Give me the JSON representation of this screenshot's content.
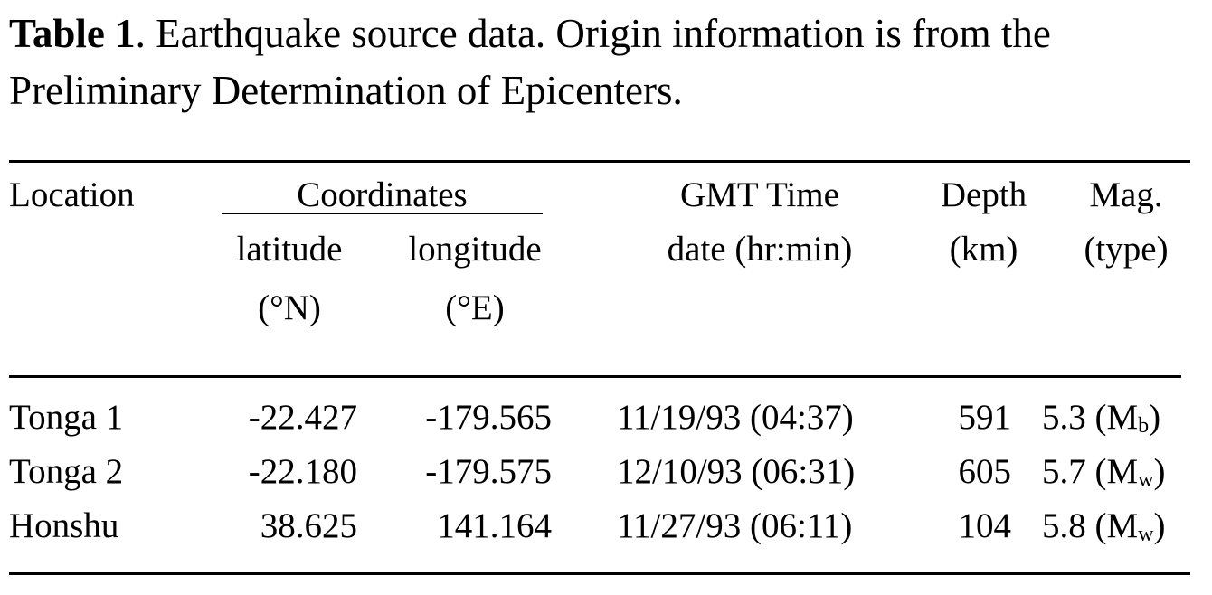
{
  "caption": {
    "label": "Table 1",
    "text": ". Earthquake source data.  Origin information is from the Preliminary Determination of Epicenters."
  },
  "table": {
    "headers": {
      "location": "Location",
      "coordinates": "Coordinates",
      "latitude": "latitude",
      "latitude_unit": "(°N)",
      "longitude": "longitude",
      "longitude_unit": "(°E)",
      "time": "GMT Time",
      "time_sub": "date (hr:min)",
      "depth": "Depth",
      "depth_unit": "(km)",
      "mag": "Mag.",
      "mag_sub": "(type)"
    },
    "rows": [
      {
        "location": "Tonga 1",
        "lat": "-22.427",
        "lon": "-179.565",
        "time": "11/19/93 (04:37)",
        "depth": "591",
        "mag": "5.3",
        "mag_type": "b"
      },
      {
        "location": "Tonga 2",
        "lat": "-22.180",
        "lon": "-179.575",
        "time": "12/10/93 (06:31)",
        "depth": "605",
        "mag": "5.7",
        "mag_type": "w"
      },
      {
        "location": "Honshu",
        "lat": "38.625",
        "lon": "141.164",
        "time": "11/27/93 (06:11)",
        "depth": "104",
        "mag": "5.8",
        "mag_type": "w"
      }
    ]
  }
}
